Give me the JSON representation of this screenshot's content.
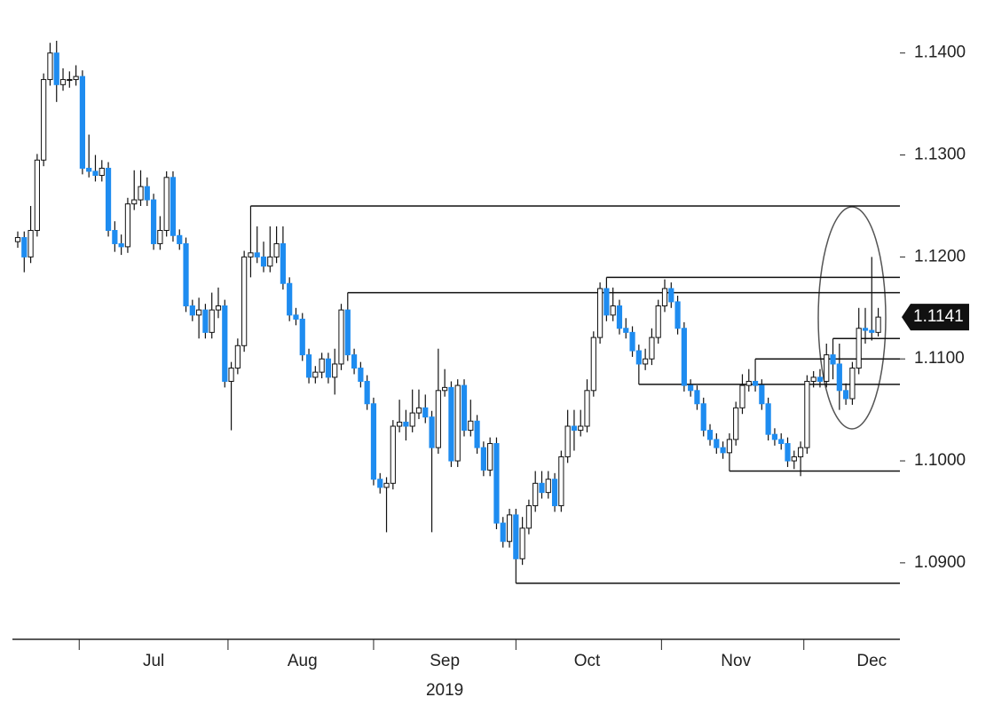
{
  "chart_data": {
    "type": "candlestick",
    "xlabel": "2019",
    "categories": [
      null,
      null,
      null,
      null,
      null,
      null,
      null,
      null,
      null,
      null,
      null,
      null,
      null,
      null,
      null,
      null,
      null,
      null,
      null,
      null,
      null,
      "Jul",
      null,
      null,
      null,
      null,
      null,
      null,
      null,
      null,
      null,
      null,
      null,
      null,
      null,
      null,
      null,
      null,
      null,
      null,
      null,
      null,
      null,
      null,
      "Aug",
      null,
      null,
      null,
      null,
      null,
      null,
      null,
      null,
      null,
      null,
      null,
      null,
      null,
      null,
      null,
      null,
      null,
      null,
      null,
      null,
      null,
      "Sep",
      null,
      null,
      null,
      null,
      null,
      null,
      null,
      null,
      null,
      null,
      null,
      null,
      null,
      null,
      null,
      null,
      null,
      null,
      null,
      null,
      null,
      "Oct",
      null,
      null,
      null,
      null,
      null,
      null,
      null,
      null,
      null,
      null,
      null,
      null,
      null,
      null,
      null,
      null,
      null,
      null,
      null,
      null,
      null,
      null,
      "Nov",
      null,
      null,
      null,
      null,
      null,
      null,
      null,
      null,
      null,
      null,
      null,
      null,
      null,
      null,
      null,
      null,
      null,
      null,
      null,
      null,
      "Dec",
      null
    ],
    "open": [
      1.1215,
      1.1219,
      1.12,
      1.1226,
      1.1295,
      1.1374,
      1.14,
      1.1369,
      1.1374,
      1.1374,
      1.1377,
      1.1287,
      1.1284,
      1.128,
      1.1287,
      1.1226,
      1.1213,
      1.121,
      1.1252,
      1.1256,
      1.1269,
      1.1256,
      1.1213,
      1.1226,
      1.1278,
      1.1221,
      1.1213,
      1.1152,
      1.1143,
      1.1148,
      1.1126,
      1.1148,
      1.1152,
      1.1078,
      1.1091,
      1.1113,
      1.12,
      1.1204,
      1.12,
      1.1191,
      1.12,
      1.1213,
      1.1174,
      1.1143,
      1.1139,
      1.1104,
      1.1082,
      1.1087,
      1.11,
      1.1082,
      1.1095,
      1.1148,
      1.1104,
      1.1091,
      1.1078,
      1.1056,
      1.0982,
      1.0974,
      1.0978,
      1.1034,
      1.1038,
      1.1034,
      1.1047,
      1.1052,
      1.1043,
      1.1013,
      1.1069,
      1.1072,
      1.1,
      1.1074,
      1.103,
      1.1039,
      1.1013,
      1.0991,
      1.1017,
      1.0939,
      1.0921,
      1.0947,
      1.0904,
      1.0934,
      1.0956,
      1.0978,
      1.0969,
      1.0982,
      1.0956,
      1.1004,
      1.1034,
      1.103,
      1.1034,
      1.1069,
      1.1121,
      1.1169,
      1.1143,
      1.1152,
      1.113,
      1.1126,
      1.1108,
      1.1095,
      1.11,
      1.1121,
      1.1152,
      1.1169,
      1.1156,
      1.113,
      1.1074,
      1.1069,
      1.1056,
      1.103,
      1.1021,
      1.1013,
      1.1008,
      1.1021,
      1.1052,
      1.1074,
      1.1078,
      1.1074,
      1.1056,
      1.1026,
      1.1021,
      1.1017,
      1.1,
      1.1004,
      1.1013,
      1.1078,
      1.1082,
      1.1078,
      1.1104,
      1.1095,
      1.1069,
      1.1061,
      1.1091,
      1.113,
      1.1128,
      1.1126
    ],
    "high": [
      1.1225,
      1.1225,
      1.125,
      1.1301,
      1.138,
      1.141,
      1.1412,
      1.1385,
      1.1382,
      1.1388,
      1.1383,
      1.132,
      1.13,
      1.1295,
      1.1293,
      1.1235,
      1.1222,
      1.1258,
      1.1285,
      1.1285,
      1.1278,
      1.1262,
      1.124,
      1.1284,
      1.1284,
      1.1227,
      1.1219,
      1.1158,
      1.116,
      1.1154,
      1.1165,
      1.117,
      1.1158,
      1.1097,
      1.112,
      1.1206,
      1.125,
      1.123,
      1.1215,
      1.123,
      1.123,
      1.123,
      1.118,
      1.115,
      1.1145,
      1.111,
      1.1093,
      1.1106,
      1.1106,
      1.111,
      1.1154,
      1.1165,
      1.111,
      1.1097,
      1.1084,
      1.1062,
      1.0988,
      1.0984,
      1.104,
      1.106,
      1.105,
      1.107,
      1.107,
      1.1065,
      1.1049,
      1.111,
      1.109,
      1.1078,
      1.108,
      1.108,
      1.106,
      1.1045,
      1.1019,
      1.1023,
      1.1023,
      1.0945,
      1.0953,
      1.0953,
      1.0945,
      1.0962,
      1.099,
      1.099,
      1.099,
      1.0988,
      1.101,
      1.105,
      1.105,
      1.105,
      1.108,
      1.1127,
      1.1175,
      1.118,
      1.117,
      1.1158,
      1.114,
      1.1132,
      1.1114,
      1.111,
      1.113,
      1.1158,
      1.1178,
      1.1175,
      1.1162,
      1.1136,
      1.108,
      1.1074,
      1.1062,
      1.1036,
      1.1027,
      1.1019,
      1.1027,
      1.1058,
      1.1085,
      1.109,
      1.11,
      1.108,
      1.1062,
      1.1032,
      1.1027,
      1.1023,
      1.101,
      1.1019,
      1.1084,
      1.1088,
      1.109,
      1.1115,
      1.112,
      1.1115,
      1.1076,
      1.1097,
      1.115,
      1.115,
      1.12,
      1.115
    ],
    "low": [
      1.1209,
      1.1185,
      1.1194,
      1.122,
      1.1289,
      1.1368,
      1.1352,
      1.1363,
      1.1366,
      1.1368,
      1.1281,
      1.1278,
      1.1274,
      1.1274,
      1.122,
      1.1205,
      1.1202,
      1.1204,
      1.1246,
      1.125,
      1.125,
      1.1207,
      1.1207,
      1.122,
      1.1215,
      1.1207,
      1.1146,
      1.1137,
      1.112,
      1.112,
      1.112,
      1.114,
      1.1072,
      1.103,
      1.1085,
      1.1107,
      1.118,
      1.1194,
      1.1185,
      1.1185,
      1.1194,
      1.1168,
      1.1137,
      1.1133,
      1.1098,
      1.1076,
      1.1076,
      1.1081,
      1.1076,
      1.1065,
      1.1089,
      1.1098,
      1.1085,
      1.1072,
      1.105,
      1.0976,
      1.0968,
      1.093,
      1.0972,
      1.1028,
      1.102,
      1.1028,
      1.1041,
      1.1037,
      1.093,
      1.1007,
      1.1063,
      1.0994,
      1.0994,
      1.1024,
      1.1024,
      1.1007,
      1.0985,
      1.0985,
      1.0933,
      1.0915,
      1.0915,
      1.088,
      1.0898,
      1.0928,
      1.095,
      1.0963,
      1.0963,
      1.095,
      1.095,
      1.0998,
      1.101,
      1.1024,
      1.1028,
      1.1063,
      1.1115,
      1.1137,
      1.1137,
      1.1124,
      1.112,
      1.1102,
      1.1075,
      1.1089,
      1.1094,
      1.1115,
      1.1146,
      1.115,
      1.1124,
      1.1068,
      1.1063,
      1.105,
      1.1024,
      1.1015,
      1.1007,
      1.1002,
      1.099,
      1.1015,
      1.1046,
      1.1068,
      1.1068,
      1.105,
      1.102,
      1.1015,
      1.1011,
      1.0994,
      1.0992,
      1.0985,
      1.1007,
      1.1072,
      1.1072,
      1.1072,
      1.108,
      1.105,
      1.1055,
      1.1055,
      1.1085,
      1.1115,
      1.1118,
      1.1122
    ],
    "close": [
      1.1219,
      1.12,
      1.1226,
      1.1295,
      1.1374,
      1.14,
      1.1369,
      1.1374,
      1.1374,
      1.1377,
      1.1287,
      1.1284,
      1.128,
      1.1287,
      1.1226,
      1.1213,
      1.121,
      1.1252,
      1.1256,
      1.1269,
      1.1256,
      1.1213,
      1.1226,
      1.1278,
      1.1221,
      1.1213,
      1.1152,
      1.1143,
      1.1148,
      1.1126,
      1.1148,
      1.1152,
      1.1078,
      1.1091,
      1.1113,
      1.12,
      1.1204,
      1.12,
      1.1191,
      1.12,
      1.1213,
      1.1174,
      1.1143,
      1.1139,
      1.1104,
      1.1082,
      1.1087,
      1.11,
      1.1082,
      1.1095,
      1.1148,
      1.1104,
      1.1091,
      1.1078,
      1.1056,
      1.0982,
      1.0974,
      1.0978,
      1.1034,
      1.1038,
      1.1034,
      1.1047,
      1.1052,
      1.1043,
      1.1013,
      1.1069,
      1.1072,
      1.1,
      1.1074,
      1.103,
      1.1039,
      1.1013,
      1.0991,
      1.1017,
      1.0939,
      1.0921,
      1.0947,
      1.0904,
      1.0934,
      1.0956,
      1.0978,
      1.0969,
      1.0982,
      1.0956,
      1.1004,
      1.1034,
      1.103,
      1.1034,
      1.1069,
      1.1121,
      1.1169,
      1.1143,
      1.1152,
      1.113,
      1.1126,
      1.1108,
      1.1095,
      1.11,
      1.1121,
      1.1152,
      1.1169,
      1.1156,
      1.113,
      1.1074,
      1.1069,
      1.1056,
      1.103,
      1.1021,
      1.1013,
      1.1008,
      1.1021,
      1.1052,
      1.1074,
      1.1078,
      1.1074,
      1.1056,
      1.1026,
      1.1021,
      1.1017,
      1.1,
      1.1004,
      1.1013,
      1.1078,
      1.1082,
      1.1078,
      1.1104,
      1.1095,
      1.1069,
      1.1061,
      1.1091,
      1.113,
      1.1128,
      1.1126,
      1.1141
    ],
    "up_color": "#ffffff",
    "down_color": "#1e8cf0",
    "levels": [
      1.125,
      1.1165,
      1.118,
      1.1075,
      1.112,
      1.11,
      1.099,
      1.088
    ],
    "last_price": 1.1141,
    "ylim": [
      1.0825,
      1.1452
    ],
    "yticks": [
      {
        "value": 1.14,
        "label": "1.1400"
      },
      {
        "value": 1.13,
        "label": "1.1300"
      },
      {
        "value": 1.12,
        "label": "1.1200"
      },
      {
        "value": 1.11,
        "label": "1.1100"
      },
      {
        "value": 1.1,
        "label": "1.1000"
      },
      {
        "value": 1.09,
        "label": "1.0900"
      }
    ]
  }
}
